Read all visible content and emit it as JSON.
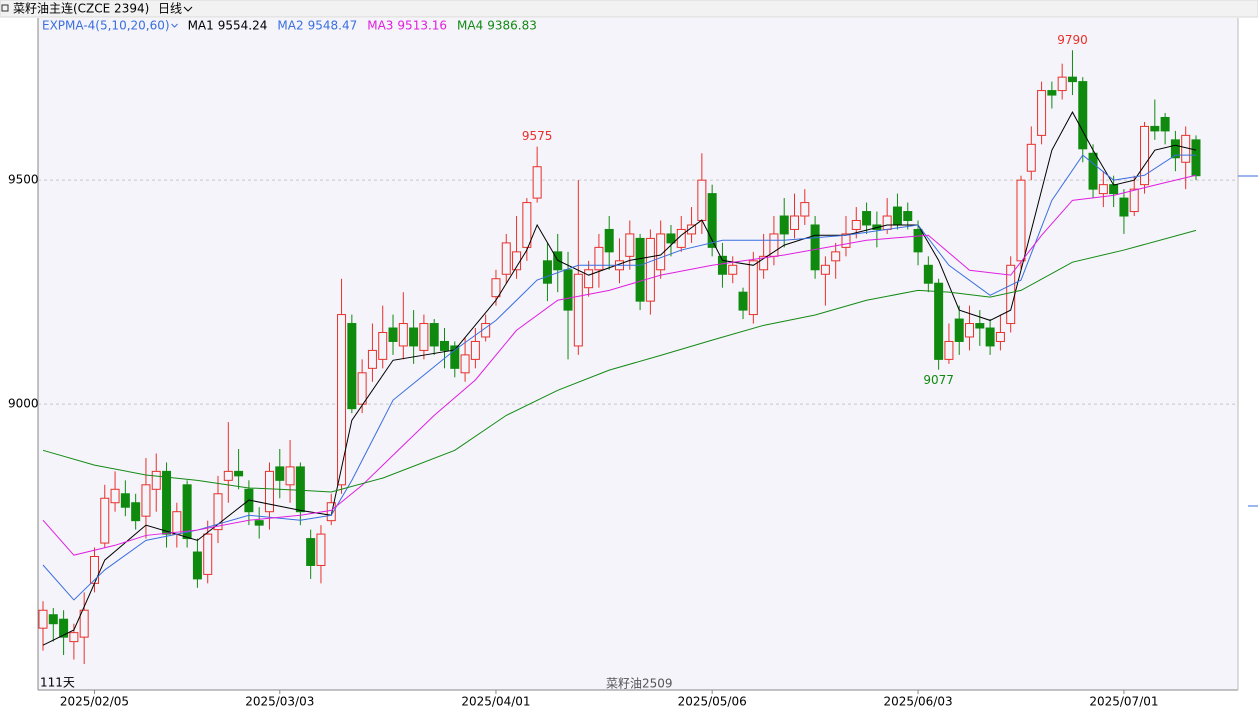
{
  "chart_data": {
    "type": "candlestick",
    "title": "菜籽油主连(CZCE 2394)",
    "period": "日线",
    "indicator": "EXPMA-4(5,10,20,60)",
    "footer_left": "111天",
    "footer_center": "菜籽油2509",
    "ylim": [
      8362,
      9862
    ],
    "yticks": [
      9000,
      9500
    ],
    "grid": true,
    "xlim": [
      0,
      112
    ],
    "xticks": [
      {
        "value": 5,
        "label": "2025/02/05"
      },
      {
        "value": 23,
        "label": "2025/03/03"
      },
      {
        "value": 44,
        "label": "2025/04/01"
      },
      {
        "value": 65,
        "label": "2025/05/06"
      },
      {
        "value": 85,
        "label": "2025/06/03"
      },
      {
        "value": 105,
        "label": "2025/07/01"
      }
    ],
    "up_color": "#e8302a",
    "down_color": "#0f8a0f",
    "open": [
      8500,
      8530,
      8520,
      8470,
      8480,
      8600,
      8690,
      8780,
      8800,
      8780,
      8750,
      8810,
      8850,
      8710,
      8820,
      8670,
      8620,
      8720,
      8830,
      8850,
      8810,
      8740,
      8760,
      8860,
      8820,
      8860,
      8700,
      8640,
      8740,
      8820,
      9180,
      9000,
      9080,
      9100,
      9170,
      9130,
      9170,
      9120,
      9180,
      9140,
      9130,
      9070,
      9100,
      9150,
      9240,
      9290,
      9300,
      9350,
      9460,
      9320,
      9340,
      9300,
      9130,
      9260,
      9300,
      9390,
      9300,
      9330,
      9370,
      9230,
      9300,
      9380,
      9350,
      9380,
      9410,
      9470,
      9330,
      9290,
      9250,
      9200,
      9300,
      9330,
      9420,
      9390,
      9420,
      9400,
      9290,
      9320,
      9350,
      9390,
      9430,
      9400,
      9390,
      9440,
      9430,
      9390,
      9310,
      9270,
      9100,
      9190,
      9150,
      9180,
      9170,
      9140,
      9180,
      9320,
      9520,
      9600,
      9700,
      9700,
      9730,
      9720,
      9560,
      9470,
      9490,
      9460,
      9430,
      9490,
      9620,
      9640,
      9590,
      9540,
      9590
    ],
    "high": [
      8560,
      8545,
      8540,
      8510,
      8580,
      8680,
      8820,
      8850,
      8830,
      8800,
      8880,
      8890,
      8870,
      8780,
      8830,
      8700,
      8740,
      8840,
      8960,
      8900,
      8830,
      8770,
      8870,
      8900,
      8920,
      8870,
      8720,
      8730,
      8800,
      9280,
      9200,
      9100,
      9180,
      9220,
      9200,
      9250,
      9210,
      9200,
      9190,
      9170,
      9140,
      9150,
      9170,
      9200,
      9300,
      9380,
      9420,
      9460,
      9575,
      9360,
      9380,
      9340,
      9500,
      9320,
      9380,
      9420,
      9370,
      9410,
      9380,
      9390,
      9410,
      9400,
      9420,
      9440,
      9560,
      9490,
      9360,
      9330,
      9260,
      9340,
      9380,
      9420,
      9460,
      9470,
      9480,
      9420,
      9330,
      9360,
      9420,
      9440,
      9450,
      9430,
      9460,
      9470,
      9450,
      9410,
      9330,
      9280,
      9180,
      9220,
      9220,
      9210,
      9190,
      9200,
      9330,
      9510,
      9620,
      9720,
      9720,
      9760,
      9790,
      9730,
      9580,
      9520,
      9510,
      9480,
      9510,
      9630,
      9680,
      9650,
      9610,
      9620,
      9600
    ],
    "low": [
      8450,
      8470,
      8440,
      8430,
      8420,
      8580,
      8680,
      8760,
      8750,
      8720,
      8700,
      8760,
      8680,
      8680,
      8680,
      8590,
      8600,
      8690,
      8780,
      8810,
      8730,
      8700,
      8720,
      8790,
      8780,
      8730,
      8610,
      8600,
      8730,
      8800,
      8980,
      8980,
      9050,
      9080,
      9110,
      9100,
      9090,
      9100,
      9110,
      9080,
      9060,
      9050,
      9080,
      9140,
      9220,
      9270,
      9280,
      9320,
      9450,
      9230,
      9250,
      9100,
      9110,
      9240,
      9260,
      9300,
      9270,
      9300,
      9210,
      9200,
      9280,
      9330,
      9340,
      9360,
      9380,
      9330,
      9260,
      9270,
      9190,
      9180,
      9280,
      9310,
      9350,
      9370,
      9400,
      9280,
      9220,
      9280,
      9330,
      9370,
      9380,
      9350,
      9380,
      9390,
      9390,
      9310,
      9250,
      9077,
      9090,
      9110,
      9120,
      9130,
      9110,
      9120,
      9160,
      9300,
      9500,
      9580,
      9660,
      9680,
      9690,
      9540,
      9460,
      9440,
      9440,
      9380,
      9420,
      9470,
      9590,
      9580,
      9520,
      9480,
      9500
    ],
    "close": [
      8540,
      8510,
      8480,
      8490,
      8540,
      8660,
      8790,
      8810,
      8770,
      8740,
      8820,
      8850,
      8710,
      8760,
      8700,
      8610,
      8710,
      8800,
      8850,
      8840,
      8760,
      8730,
      8850,
      8830,
      8860,
      8760,
      8640,
      8710,
      8780,
      9200,
      8990,
      9070,
      9120,
      9160,
      9140,
      9180,
      9130,
      9180,
      9130,
      9120,
      9080,
      9110,
      9140,
      9180,
      9280,
      9360,
      9340,
      9450,
      9530,
      9270,
      9300,
      9210,
      9290,
      9300,
      9350,
      9340,
      9320,
      9380,
      9230,
      9370,
      9380,
      9360,
      9390,
      9400,
      9500,
      9350,
      9290,
      9310,
      9210,
      9320,
      9330,
      9380,
      9380,
      9420,
      9450,
      9300,
      9310,
      9340,
      9380,
      9410,
      9400,
      9390,
      9420,
      9400,
      9410,
      9340,
      9270,
      9100,
      9140,
      9140,
      9180,
      9170,
      9130,
      9160,
      9310,
      9500,
      9580,
      9700,
      9690,
      9730,
      9720,
      9570,
      9480,
      9490,
      9470,
      9420,
      9480,
      9620,
      9610,
      9610,
      9550,
      9600,
      9510
    ],
    "series": [
      {
        "name": "MA1",
        "last_value": 9554.24,
        "color": "#000000",
        "x": [
          0,
          3,
          6,
          10,
          15,
          20,
          25,
          28,
          30,
          34,
          40,
          44,
          47,
          48,
          50,
          53,
          57,
          60,
          62,
          64,
          66,
          69,
          72,
          75,
          78,
          82,
          85,
          87,
          89,
          92,
          94,
          96,
          98,
          100,
          102,
          104,
          106,
          108,
          110,
          112
        ],
        "values": [
          8462,
          8496,
          8652,
          8730,
          8696,
          8786,
          8763,
          8752,
          8964,
          9098,
          9121,
          9232,
          9344,
          9400,
          9321,
          9288,
          9321,
          9333,
          9377,
          9411,
          9321,
          9310,
          9355,
          9377,
          9377,
          9400,
          9400,
          9321,
          9210,
          9187,
          9210,
          9388,
          9567,
          9652,
          9567,
          9489,
          9500,
          9567,
          9578,
          9567
        ]
      },
      {
        "name": "MA2",
        "last_value": 9548.47,
        "color": "#3a6fe0",
        "x": [
          0,
          3,
          6,
          10,
          15,
          20,
          25,
          28,
          30,
          34,
          40,
          44,
          48,
          52,
          58,
          62,
          66,
          72,
          78,
          85,
          88,
          92,
          95,
          98,
          101,
          104,
          107,
          110,
          112
        ],
        "values": [
          8641,
          8563,
          8630,
          8696,
          8719,
          8752,
          8741,
          8752,
          8830,
          9009,
          9121,
          9187,
          9277,
          9310,
          9310,
          9344,
          9366,
          9366,
          9377,
          9400,
          9310,
          9243,
          9277,
          9455,
          9556,
          9500,
          9511,
          9556,
          9556
        ]
      },
      {
        "name": "MA3",
        "last_value": 9513.16,
        "color": "#e020e0",
        "x": [
          0,
          3,
          7,
          10,
          15,
          20,
          25,
          28,
          31,
          34,
          38,
          42,
          46,
          50,
          55,
          60,
          65,
          72,
          80,
          86,
          90,
          94,
          97,
          100,
          104,
          108,
          112
        ],
        "values": [
          8741,
          8663,
          8685,
          8707,
          8719,
          8741,
          8752,
          8763,
          8819,
          8886,
          8975,
          9054,
          9165,
          9232,
          9254,
          9288,
          9310,
          9333,
          9366,
          9377,
          9299,
          9288,
          9377,
          9455,
          9466,
          9489,
          9511
        ]
      },
      {
        "name": "MA4",
        "last_value": 9386.83,
        "color": "#138a13",
        "x": [
          0,
          5,
          10,
          15,
          20,
          25,
          28,
          33,
          40,
          45,
          50,
          55,
          60,
          65,
          70,
          75,
          80,
          85,
          88,
          92,
          95,
          100,
          105,
          112
        ],
        "values": [
          8897,
          8864,
          8842,
          8830,
          8813,
          8808,
          8804,
          8835,
          8897,
          8975,
          9031,
          9076,
          9109,
          9143,
          9176,
          9199,
          9232,
          9254,
          9250,
          9239,
          9254,
          9317,
          9344,
          9388
        ]
      }
    ]
  }
}
